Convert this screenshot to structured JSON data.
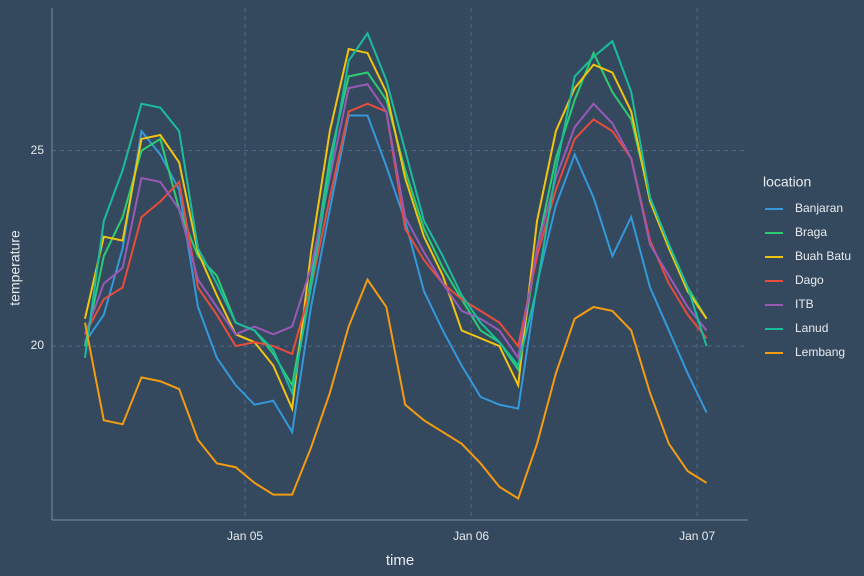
{
  "chart_data": {
    "type": "line",
    "x_label": "time",
    "y_label": "temperature",
    "legend_title": "location",
    "x": [
      7,
      9,
      11,
      13,
      15,
      17,
      19,
      21,
      23,
      25,
      27,
      29,
      31,
      33,
      35,
      37,
      39,
      41,
      43,
      45,
      47,
      49,
      51,
      53,
      55,
      57,
      59,
      61,
      63,
      65,
      67,
      69,
      71,
      73
    ],
    "xlim": [
      3.5,
      77.4
    ],
    "xticks": [
      {
        "value": 24,
        "label": "Jan 05"
      },
      {
        "value": 48,
        "label": "Jan 06"
      },
      {
        "value": 72,
        "label": "Jan 07"
      }
    ],
    "ylim": [
      15.55,
      28.65
    ],
    "yticks": [
      20,
      25
    ],
    "grid": true,
    "legend": "right",
    "series": [
      {
        "name": "Banjaran",
        "color": "#3498db",
        "values": [
          20.1,
          20.8,
          22.5,
          25.5,
          24.9,
          24.0,
          21.0,
          19.7,
          19.0,
          18.5,
          18.6,
          17.8,
          21.0,
          23.5,
          25.9,
          25.9,
          24.6,
          23.2,
          21.4,
          20.4,
          19.5,
          18.7,
          18.5,
          18.4,
          21.6,
          23.6,
          24.9,
          23.8,
          22.3,
          23.3,
          21.5,
          20.4,
          19.3,
          18.3
        ]
      },
      {
        "name": "Braga",
        "color": "#2ecc71",
        "values": [
          20.0,
          22.3,
          23.3,
          25.0,
          25.3,
          23.5,
          22.3,
          21.8,
          20.6,
          20.4,
          19.8,
          19.0,
          21.7,
          24.8,
          26.9,
          27.0,
          26.3,
          24.5,
          23.0,
          22.0,
          21.2,
          20.4,
          20.1,
          19.4,
          22.5,
          24.8,
          26.3,
          27.5,
          26.5,
          25.8,
          23.8,
          22.6,
          21.5,
          20.7
        ]
      },
      {
        "name": "Buah Batu",
        "color": "#f1c40f",
        "values": [
          20.7,
          22.8,
          22.7,
          25.3,
          25.4,
          24.7,
          22.4,
          21.3,
          20.3,
          20.1,
          19.5,
          18.4,
          22.4,
          25.5,
          27.6,
          27.5,
          26.5,
          24.3,
          22.8,
          21.8,
          20.4,
          20.2,
          20.0,
          19.0,
          23.2,
          25.5,
          26.6,
          27.2,
          27.0,
          26.0,
          23.7,
          22.5,
          21.4,
          20.7
        ]
      },
      {
        "name": "Dago",
        "color": "#e74c3c",
        "values": [
          20.3,
          21.2,
          21.5,
          23.3,
          23.7,
          24.2,
          21.5,
          20.8,
          20.0,
          20.1,
          20.0,
          19.8,
          21.5,
          23.8,
          26.0,
          26.2,
          26.0,
          23.0,
          22.2,
          21.6,
          21.2,
          20.9,
          20.6,
          20.0,
          22.3,
          24.0,
          25.3,
          25.8,
          25.5,
          24.8,
          22.7,
          21.6,
          20.8,
          20.2
        ]
      },
      {
        "name": "ITB",
        "color": "#9b59b6",
        "values": [
          20.3,
          21.6,
          22.0,
          24.3,
          24.2,
          23.5,
          21.7,
          21.0,
          20.3,
          20.5,
          20.3,
          20.5,
          22.0,
          24.3,
          26.6,
          26.7,
          26.0,
          23.3,
          22.4,
          21.6,
          20.9,
          20.7,
          20.4,
          19.7,
          22.5,
          24.3,
          25.6,
          26.2,
          25.7,
          24.8,
          22.6,
          21.8,
          21.0,
          20.4
        ]
      },
      {
        "name": "Lanud",
        "color": "#1abc9c",
        "values": [
          19.7,
          23.2,
          24.5,
          26.2,
          26.1,
          25.5,
          22.5,
          21.6,
          20.6,
          20.4,
          19.9,
          18.8,
          21.5,
          24.5,
          27.3,
          28.0,
          26.8,
          25.0,
          23.2,
          22.3,
          21.3,
          20.6,
          20.1,
          19.5,
          21.5,
          24.5,
          26.9,
          27.4,
          27.8,
          26.5,
          23.8,
          22.6,
          21.5,
          20.0
        ]
      },
      {
        "name": "Lembang",
        "color": "#f39c12",
        "values": [
          20.6,
          18.1,
          18.0,
          19.2,
          19.1,
          18.9,
          17.6,
          17.0,
          16.9,
          16.5,
          16.2,
          16.2,
          17.4,
          18.8,
          20.5,
          21.7,
          21.0,
          18.5,
          18.1,
          17.8,
          17.5,
          17.0,
          16.4,
          16.1,
          17.5,
          19.3,
          20.7,
          21.0,
          20.9,
          20.4,
          18.8,
          17.5,
          16.8,
          16.5
        ]
      }
    ]
  }
}
